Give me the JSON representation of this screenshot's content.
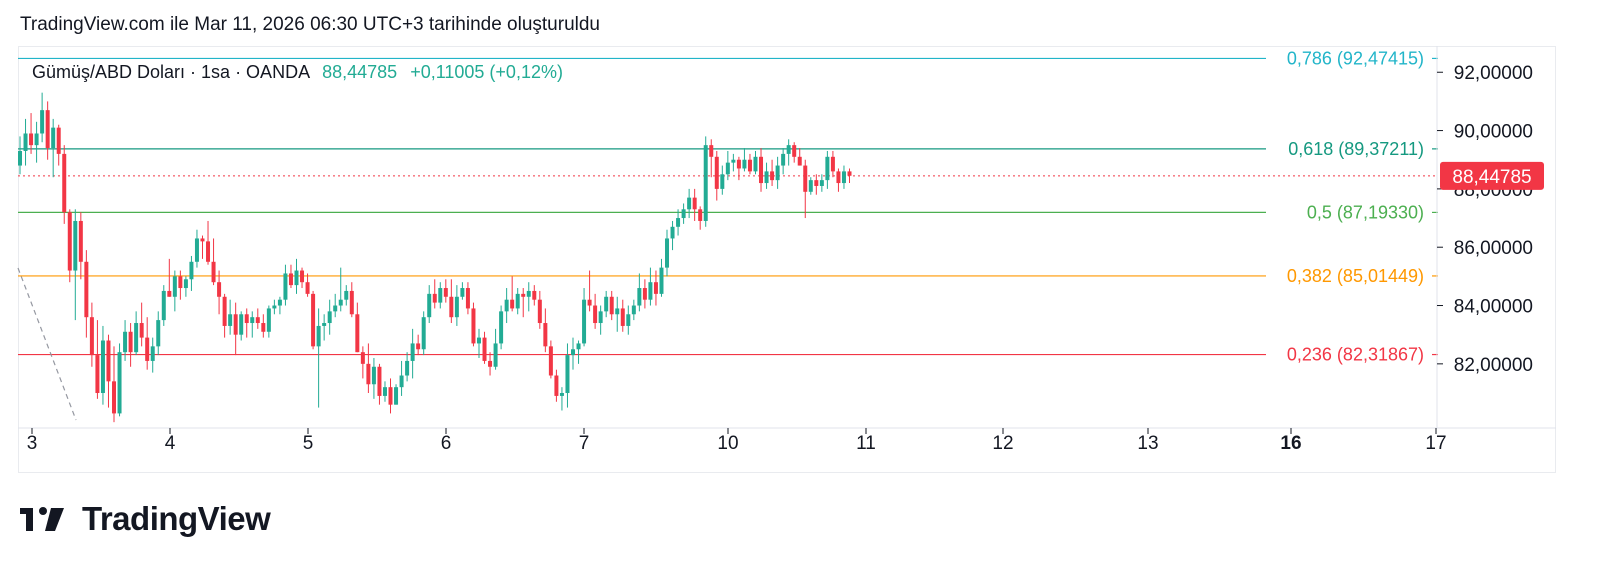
{
  "header": {
    "caption": "TradingView.com ile Mar 11, 2026 06:30 UTC+3 tarihinde oluşturuldu"
  },
  "legend": {
    "symbol": "Gümüş/ABD Doları · 1sa · OANDA",
    "price": "88,44785",
    "change": "+0,11005 (+0,12%)"
  },
  "brand": {
    "name": "TradingView",
    "logo_icon": "tradingview-logo-icon"
  },
  "colors": {
    "up": "#22ab94",
    "down": "#f23645",
    "last_price_bg": "#f23645"
  },
  "chart_data": {
    "type": "candlestick",
    "ylim": [
      79.8,
      92.9
    ],
    "x_ticks": [
      "3",
      "4",
      "5",
      "6",
      "7",
      "10",
      "11",
      "12",
      "13",
      "16",
      "17"
    ],
    "x_tick_bold": [
      "16"
    ],
    "y_ticks": [
      {
        "value": 92,
        "label": "92,00000"
      },
      {
        "value": 90,
        "label": "90,00000"
      },
      {
        "value": 88,
        "label": "88,00000"
      },
      {
        "value": 86,
        "label": "86,00000"
      },
      {
        "value": 84,
        "label": "84,00000"
      },
      {
        "value": 82,
        "label": "82,00000"
      }
    ],
    "last_price": {
      "value": 88.44785,
      "label": "88,44785"
    },
    "fib_levels": [
      {
        "level": "0,786",
        "value": 92.47415,
        "price_label": "92,47415",
        "color": "#22b5c9"
      },
      {
        "level": "0,618",
        "value": 89.37211,
        "price_label": "89,37211",
        "color": "#159980"
      },
      {
        "level": "0,5",
        "value": 87.1933,
        "price_label": "87,19330",
        "color": "#4caf50"
      },
      {
        "level": "0,382",
        "value": 85.01449,
        "price_label": "85,01449",
        "color": "#ff9800"
      },
      {
        "level": "0,236",
        "value": 82.31867,
        "price_label": "82,31867",
        "color": "#f23645"
      }
    ],
    "candles": [
      [
        88.8,
        89.8,
        88.5,
        89.3
      ],
      [
        89.3,
        90.4,
        88.8,
        89.9
      ],
      [
        89.9,
        90.6,
        89.2,
        89.5
      ],
      [
        89.5,
        90.3,
        88.9,
        89.9
      ],
      [
        89.9,
        91.3,
        89.6,
        90.7
      ],
      [
        90.7,
        91.0,
        89.0,
        89.4
      ],
      [
        89.4,
        90.4,
        88.4,
        90.1
      ],
      [
        90.1,
        90.2,
        88.8,
        89.2
      ],
      [
        89.2,
        89.5,
        86.8,
        87.2
      ],
      [
        87.2,
        87.3,
        84.8,
        85.2
      ],
      [
        85.2,
        87.3,
        83.5,
        86.9
      ],
      [
        86.9,
        87.2,
        84.9,
        85.5
      ],
      [
        85.5,
        85.9,
        82.9,
        83.6
      ],
      [
        83.6,
        84.1,
        81.9,
        82.3
      ],
      [
        82.3,
        83.5,
        80.8,
        81.0
      ],
      [
        81.0,
        83.3,
        80.6,
        82.8
      ],
      [
        82.8,
        83.0,
        80.5,
        81.4
      ],
      [
        81.4,
        82.6,
        80.0,
        80.3
      ],
      [
        80.3,
        82.7,
        80.2,
        82.4
      ],
      [
        82.4,
        83.5,
        82.1,
        83.1
      ],
      [
        83.1,
        83.4,
        81.9,
        82.4
      ],
      [
        82.4,
        83.8,
        82.3,
        83.4
      ],
      [
        83.4,
        84.1,
        82.6,
        82.9
      ],
      [
        82.9,
        83.6,
        81.8,
        82.1
      ],
      [
        82.1,
        82.9,
        81.7,
        82.6
      ],
      [
        82.6,
        83.8,
        82.3,
        83.5
      ],
      [
        83.5,
        84.7,
        83.3,
        84.5
      ],
      [
        84.5,
        85.6,
        84.3,
        84.3
      ],
      [
        84.3,
        85.2,
        83.8,
        85.0
      ],
      [
        85.0,
        85.2,
        84.2,
        84.6
      ],
      [
        84.6,
        85.0,
        84.3,
        84.9
      ],
      [
        84.9,
        85.7,
        84.5,
        85.5
      ],
      [
        85.5,
        86.6,
        85.3,
        86.3
      ],
      [
        86.3,
        86.4,
        85.6,
        86.2
      ],
      [
        86.2,
        86.9,
        85.4,
        85.5
      ],
      [
        85.5,
        86.3,
        84.7,
        84.8
      ],
      [
        84.8,
        85.2,
        83.7,
        84.3
      ],
      [
        84.3,
        84.4,
        82.9,
        83.3
      ],
      [
        83.3,
        84.2,
        83.0,
        83.7
      ],
      [
        83.7,
        84.1,
        82.3,
        83.0
      ],
      [
        83.0,
        83.8,
        82.8,
        83.7
      ],
      [
        83.7,
        83.9,
        82.9,
        83.4
      ],
      [
        83.4,
        83.8,
        82.9,
        83.6
      ],
      [
        83.6,
        83.9,
        83.2,
        83.4
      ],
      [
        83.4,
        83.7,
        82.9,
        83.1
      ],
      [
        83.1,
        84.0,
        82.9,
        83.9
      ],
      [
        83.9,
        84.2,
        83.7,
        84.0
      ],
      [
        84.0,
        84.3,
        83.7,
        84.2
      ],
      [
        84.2,
        85.4,
        84.0,
        85.1
      ],
      [
        85.1,
        85.4,
        84.6,
        84.7
      ],
      [
        84.7,
        85.6,
        84.4,
        85.2
      ],
      [
        85.2,
        85.3,
        84.6,
        84.8
      ],
      [
        84.8,
        85.1,
        84.3,
        84.4
      ],
      [
        84.4,
        84.5,
        82.5,
        82.6
      ],
      [
        82.6,
        83.9,
        80.5,
        83.3
      ],
      [
        83.3,
        83.7,
        82.8,
        83.4
      ],
      [
        83.4,
        84.2,
        83.0,
        83.8
      ],
      [
        83.8,
        84.4,
        83.6,
        84.0
      ],
      [
        84.0,
        85.3,
        83.8,
        84.2
      ],
      [
        84.2,
        84.7,
        84.0,
        84.5
      ],
      [
        84.5,
        84.8,
        83.6,
        83.7
      ],
      [
        83.7,
        84.1,
        82.4,
        82.4
      ],
      [
        82.4,
        82.6,
        81.5,
        82.0
      ],
      [
        82.0,
        82.7,
        81.0,
        81.3
      ],
      [
        81.3,
        82.2,
        80.8,
        81.9
      ],
      [
        81.9,
        82.0,
        80.6,
        80.9
      ],
      [
        80.9,
        81.4,
        80.7,
        81.2
      ],
      [
        81.2,
        81.5,
        80.3,
        80.6
      ],
      [
        80.6,
        81.3,
        80.6,
        81.2
      ],
      [
        81.2,
        82.1,
        80.9,
        81.6
      ],
      [
        81.6,
        82.4,
        81.4,
        82.1
      ],
      [
        82.1,
        83.2,
        81.5,
        82.7
      ],
      [
        82.7,
        83.0,
        82.3,
        82.5
      ],
      [
        82.5,
        83.8,
        82.3,
        83.6
      ],
      [
        83.6,
        84.7,
        83.4,
        84.4
      ],
      [
        84.4,
        84.9,
        83.9,
        84.1
      ],
      [
        84.1,
        84.8,
        83.9,
        84.6
      ],
      [
        84.6,
        84.9,
        84.1,
        84.3
      ],
      [
        84.3,
        84.9,
        83.4,
        83.6
      ],
      [
        83.6,
        84.7,
        83.3,
        84.3
      ],
      [
        84.3,
        84.8,
        84.2,
        84.6
      ],
      [
        84.6,
        84.8,
        83.7,
        83.9
      ],
      [
        83.9,
        84.1,
        82.6,
        82.7
      ],
      [
        82.7,
        83.2,
        82.2,
        82.9
      ],
      [
        82.9,
        83.1,
        82.0,
        82.1
      ],
      [
        82.1,
        82.4,
        81.6,
        81.9
      ],
      [
        81.9,
        83.2,
        81.8,
        82.7
      ],
      [
        82.7,
        84.0,
        82.5,
        83.8
      ],
      [
        83.8,
        84.6,
        83.4,
        84.2
      ],
      [
        84.2,
        85.0,
        83.8,
        83.9
      ],
      [
        83.9,
        84.6,
        83.7,
        84.4
      ],
      [
        84.4,
        84.6,
        83.6,
        84.3
      ],
      [
        84.3,
        84.8,
        83.8,
        84.5
      ],
      [
        84.5,
        84.7,
        84.0,
        84.2
      ],
      [
        84.2,
        84.5,
        83.2,
        83.4
      ],
      [
        83.4,
        83.9,
        82.4,
        82.6
      ],
      [
        82.6,
        82.8,
        81.5,
        81.6
      ],
      [
        81.6,
        81.8,
        80.7,
        80.9
      ],
      [
        80.9,
        81.2,
        80.4,
        81.0
      ],
      [
        81.0,
        82.7,
        80.5,
        82.3
      ],
      [
        82.3,
        82.9,
        81.8,
        82.5
      ],
      [
        82.5,
        82.8,
        82.0,
        82.7
      ],
      [
        82.7,
        84.6,
        82.6,
        84.2
      ],
      [
        84.2,
        85.2,
        83.8,
        84.0
      ],
      [
        84.0,
        84.4,
        83.2,
        83.4
      ],
      [
        83.4,
        84.0,
        83.0,
        83.8
      ],
      [
        83.8,
        84.5,
        83.6,
        84.3
      ],
      [
        84.3,
        84.5,
        83.5,
        83.7
      ],
      [
        83.7,
        84.3,
        83.1,
        83.9
      ],
      [
        83.9,
        84.2,
        83.1,
        83.3
      ],
      [
        83.3,
        84.0,
        83.0,
        83.7
      ],
      [
        83.7,
        84.2,
        83.5,
        84.0
      ],
      [
        84.0,
        85.1,
        83.8,
        84.6
      ],
      [
        84.6,
        84.9,
        83.9,
        84.2
      ],
      [
        84.2,
        85.3,
        84.0,
        84.8
      ],
      [
        84.8,
        85.2,
        84.0,
        84.4
      ],
      [
        84.4,
        85.6,
        84.3,
        85.3
      ],
      [
        85.3,
        86.6,
        85.0,
        86.3
      ],
      [
        86.3,
        86.9,
        85.9,
        86.7
      ],
      [
        86.7,
        87.3,
        86.4,
        87.0
      ],
      [
        87.0,
        87.5,
        86.8,
        87.3
      ],
      [
        87.3,
        88.0,
        87.0,
        87.7
      ],
      [
        87.7,
        88.0,
        86.9,
        87.3
      ],
      [
        87.3,
        87.4,
        86.6,
        86.9
      ],
      [
        86.9,
        89.8,
        86.7,
        89.5
      ],
      [
        89.5,
        89.7,
        88.4,
        89.1
      ],
      [
        89.1,
        89.3,
        87.6,
        88.0
      ],
      [
        88.0,
        88.8,
        87.8,
        88.5
      ],
      [
        88.5,
        89.3,
        88.3,
        88.9
      ],
      [
        88.9,
        89.2,
        88.6,
        89.0
      ],
      [
        89.0,
        89.1,
        88.3,
        88.7
      ],
      [
        88.7,
        89.4,
        88.6,
        89.0
      ],
      [
        89.0,
        89.2,
        88.5,
        88.6
      ],
      [
        88.6,
        89.3,
        88.5,
        89.1
      ],
      [
        89.1,
        89.4,
        87.9,
        88.2
      ],
      [
        88.2,
        88.9,
        88.0,
        88.6
      ],
      [
        88.6,
        89.0,
        88.1,
        88.3
      ],
      [
        88.3,
        89.1,
        88.0,
        88.8
      ],
      [
        88.8,
        89.4,
        88.5,
        89.2
      ],
      [
        89.2,
        89.7,
        88.8,
        89.5
      ],
      [
        89.5,
        89.6,
        88.9,
        89.1
      ],
      [
        89.1,
        89.4,
        88.8,
        88.8
      ],
      [
        88.8,
        89.0,
        87.0,
        87.9
      ],
      [
        87.9,
        88.4,
        87.8,
        88.3
      ],
      [
        88.3,
        88.5,
        87.8,
        88.1
      ],
      [
        88.1,
        88.5,
        87.9,
        88.3
      ],
      [
        88.3,
        89.3,
        88.0,
        89.1
      ],
      [
        89.1,
        89.3,
        88.4,
        88.6
      ],
      [
        88.6,
        88.7,
        87.9,
        88.2
      ],
      [
        88.2,
        88.8,
        88.0,
        88.6
      ],
      [
        88.6,
        88.7,
        88.2,
        88.45
      ]
    ]
  }
}
